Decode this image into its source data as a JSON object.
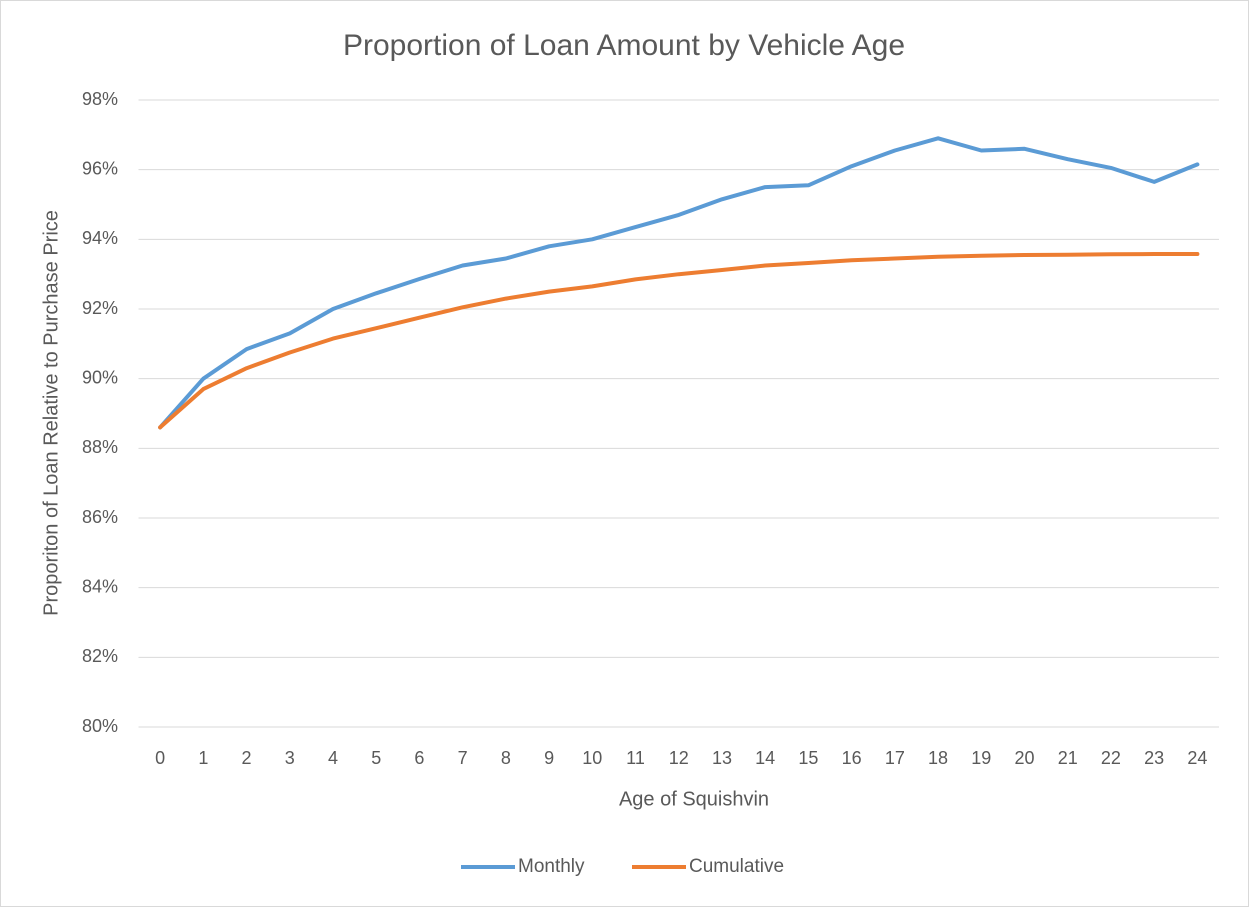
{
  "chart_data": {
    "type": "line",
    "title": "Proportion of Loan Amount by Vehicle Age",
    "x_label": "Age of Squishvin",
    "y_label": "Proporiton of Loan Relative to Purchase Price",
    "categories": [
      "0",
      "1",
      "2",
      "3",
      "4",
      "5",
      "6",
      "7",
      "8",
      "9",
      "10",
      "11",
      "12",
      "13",
      "14",
      "15",
      "16",
      "17",
      "18",
      "19",
      "20",
      "21",
      "22",
      "23",
      "24"
    ],
    "series": [
      {
        "name": "Monthly",
        "color": "#5b9bd5",
        "values": [
          88.6,
          90.0,
          90.85,
          91.3,
          92.0,
          92.45,
          92.86,
          93.25,
          93.45,
          93.8,
          94.0,
          94.35,
          94.7,
          95.15,
          95.5,
          95.55,
          96.1,
          96.55,
          96.9,
          96.55,
          96.6,
          96.3,
          96.05,
          95.65,
          96.15
        ]
      },
      {
        "name": "Cumulative",
        "color": "#ed7d31",
        "values": [
          88.6,
          89.7,
          90.3,
          90.75,
          91.15,
          91.45,
          91.75,
          92.05,
          92.3,
          92.5,
          92.65,
          92.85,
          93.0,
          93.12,
          93.25,
          93.32,
          93.4,
          93.45,
          93.5,
          93.53,
          93.55,
          93.56,
          93.57,
          93.58,
          93.58
        ]
      }
    ],
    "ylim": [
      80,
      98
    ],
    "yticks": [
      {
        "value": 80,
        "label": "80%"
      },
      {
        "value": 82,
        "label": "82%"
      },
      {
        "value": 84,
        "label": "84%"
      },
      {
        "value": 86,
        "label": "86%"
      },
      {
        "value": 88,
        "label": "88%"
      },
      {
        "value": 90,
        "label": "90%"
      },
      {
        "value": 92,
        "label": "92%"
      },
      {
        "value": 94,
        "label": "94%"
      },
      {
        "value": 96,
        "label": "96%"
      },
      {
        "value": 98,
        "label": "98%"
      }
    ],
    "grid": true,
    "legend": "bottom"
  }
}
